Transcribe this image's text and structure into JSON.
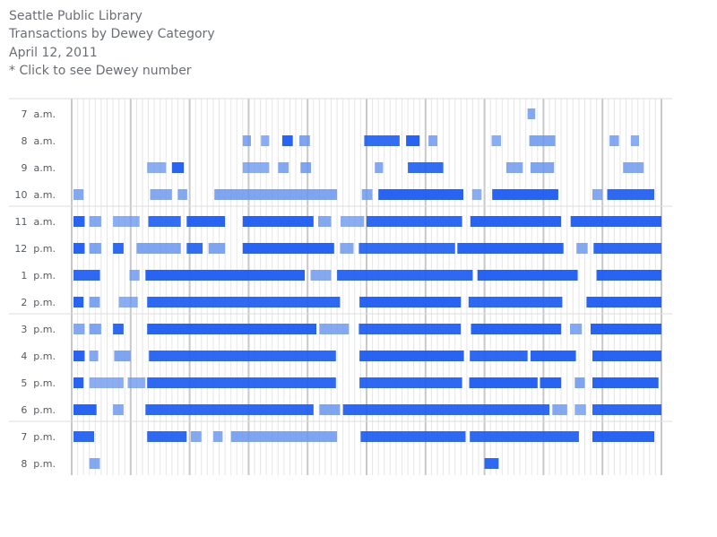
{
  "header": {
    "title": "Seattle Public Library",
    "subtitle": "Transactions by Dewey Category",
    "date": "April 12, 2011",
    "hint": "* Click to see Dewey number"
  },
  "chart_data": {
    "type": "heatmap",
    "x_categories": "Dewey Decimal Classification numbers 000–999 (unlabeled)",
    "colors": {
      "activity": "#1f5ef0",
      "activity_light": "#6a96ee",
      "grid": "#e6e6e6",
      "grid_major": "#c8c8c8"
    },
    "rows": [
      {
        "label": "7  a.m.",
        "segments": [
          [
            773,
            786,
            0.6
          ]
        ]
      },
      {
        "label": "8  a.m.",
        "segments": [
          [
            290,
            304,
            0.6
          ],
          [
            321,
            335,
            0.5
          ],
          [
            357,
            375,
            0.9
          ],
          [
            386,
            404,
            0.7
          ],
          [
            496,
            556,
            0.8
          ],
          [
            567,
            590,
            0.9
          ],
          [
            605,
            620,
            0.6
          ],
          [
            712,
            728,
            0.5
          ],
          [
            776,
            820,
            0.7
          ],
          [
            912,
            928,
            0.6
          ],
          [
            948,
            962,
            0.5
          ]
        ]
      },
      {
        "label": "9  a.m.",
        "segments": [
          [
            128,
            160,
            0.5
          ],
          [
            170,
            190,
            0.9
          ],
          [
            290,
            335,
            0.5
          ],
          [
            350,
            368,
            0.6
          ],
          [
            388,
            406,
            0.7
          ],
          [
            514,
            528,
            0.6
          ],
          [
            570,
            630,
            0.8
          ],
          [
            737,
            765,
            0.6
          ],
          [
            778,
            818,
            0.7
          ],
          [
            935,
            970,
            0.6
          ]
        ]
      },
      {
        "label": "10  a.m.",
        "segments": [
          [
            3,
            20,
            0.6
          ],
          [
            133,
            170,
            0.6
          ],
          [
            180,
            196,
            0.6
          ],
          [
            242,
            450,
            0.7
          ],
          [
            492,
            510,
            0.6
          ],
          [
            520,
            664,
            0.9
          ],
          [
            679,
            695,
            0.5
          ],
          [
            713,
            825,
            0.9
          ],
          [
            883,
            900,
            0.6
          ],
          [
            908,
            988,
            0.85
          ]
        ]
      },
      {
        "label": "11  a.m.",
        "segments": [
          [
            3,
            22,
            0.9
          ],
          [
            30,
            50,
            0.6
          ],
          [
            70,
            115,
            0.5
          ],
          [
            130,
            185,
            0.8
          ],
          [
            195,
            260,
            0.9
          ],
          [
            290,
            410,
            0.9
          ],
          [
            418,
            440,
            0.6
          ],
          [
            456,
            496,
            0.5
          ],
          [
            500,
            662,
            0.85
          ],
          [
            676,
            830,
            0.9
          ],
          [
            846,
            1000,
            0.9
          ]
        ]
      },
      {
        "label": "12  p.m.",
        "segments": [
          [
            3,
            22,
            0.9
          ],
          [
            30,
            50,
            0.7
          ],
          [
            70,
            88,
            0.85
          ],
          [
            110,
            185,
            0.7
          ],
          [
            195,
            222,
            0.8
          ],
          [
            232,
            260,
            0.7
          ],
          [
            290,
            445,
            0.9
          ],
          [
            455,
            478,
            0.6
          ],
          [
            487,
            650,
            0.8
          ],
          [
            654,
            834,
            0.9
          ],
          [
            856,
            875,
            0.6
          ],
          [
            885,
            1000,
            0.85
          ]
        ]
      },
      {
        "label": "1  p.m.",
        "segments": [
          [
            3,
            48,
            0.85
          ],
          [
            98,
            115,
            0.6
          ],
          [
            125,
            395,
            0.9
          ],
          [
            405,
            440,
            0.6
          ],
          [
            450,
            680,
            0.85
          ],
          [
            688,
            858,
            0.9
          ],
          [
            890,
            1000,
            0.9
          ]
        ]
      },
      {
        "label": "2  p.m.",
        "segments": [
          [
            3,
            20,
            0.9
          ],
          [
            30,
            48,
            0.7
          ],
          [
            80,
            112,
            0.5
          ],
          [
            128,
            455,
            0.85
          ],
          [
            488,
            660,
            0.9
          ],
          [
            673,
            832,
            0.85
          ],
          [
            873,
            1000,
            0.9
          ]
        ]
      },
      {
        "label": "3  p.m.",
        "segments": [
          [
            3,
            22,
            0.6
          ],
          [
            30,
            50,
            0.7
          ],
          [
            70,
            88,
            0.85
          ],
          [
            128,
            415,
            0.9
          ],
          [
            420,
            470,
            0.6
          ],
          [
            487,
            660,
            0.85
          ],
          [
            677,
            830,
            0.9
          ],
          [
            845,
            865,
            0.6
          ],
          [
            880,
            1000,
            0.9
          ]
        ]
      },
      {
        "label": "4  p.m.",
        "segments": [
          [
            3,
            22,
            0.9
          ],
          [
            30,
            45,
            0.6
          ],
          [
            72,
            100,
            0.7
          ],
          [
            131,
            448,
            0.85
          ],
          [
            488,
            665,
            0.9
          ],
          [
            675,
            773,
            0.85
          ],
          [
            778,
            855,
            0.9
          ],
          [
            883,
            1000,
            0.9
          ]
        ]
      },
      {
        "label": "5  p.m.",
        "segments": [
          [
            3,
            20,
            0.9
          ],
          [
            30,
            88,
            0.5
          ],
          [
            95,
            125,
            0.5
          ],
          [
            128,
            448,
            0.85
          ],
          [
            488,
            662,
            0.85
          ],
          [
            674,
            790,
            0.9
          ],
          [
            794,
            830,
            0.9
          ],
          [
            853,
            870,
            0.7
          ],
          [
            883,
            995,
            0.9
          ]
        ]
      },
      {
        "label": "6  p.m.",
        "segments": [
          [
            3,
            42,
            0.9
          ],
          [
            70,
            88,
            0.6
          ],
          [
            125,
            410,
            0.85
          ],
          [
            420,
            455,
            0.7
          ],
          [
            460,
            810,
            0.85
          ],
          [
            815,
            840,
            0.6
          ],
          [
            853,
            872,
            0.5
          ],
          [
            883,
            1000,
            0.85
          ]
        ]
      },
      {
        "label": "7  p.m.",
        "segments": [
          [
            3,
            38,
            0.85
          ],
          [
            128,
            195,
            0.85
          ],
          [
            202,
            220,
            0.6
          ],
          [
            240,
            256,
            0.6
          ],
          [
            270,
            450,
            0.7
          ],
          [
            490,
            668,
            0.85
          ],
          [
            675,
            860,
            0.85
          ],
          [
            883,
            988,
            0.9
          ]
        ]
      },
      {
        "label": "8  p.m.",
        "segments": [
          [
            30,
            48,
            0.6
          ],
          [
            700,
            724,
            0.85
          ]
        ]
      }
    ]
  }
}
